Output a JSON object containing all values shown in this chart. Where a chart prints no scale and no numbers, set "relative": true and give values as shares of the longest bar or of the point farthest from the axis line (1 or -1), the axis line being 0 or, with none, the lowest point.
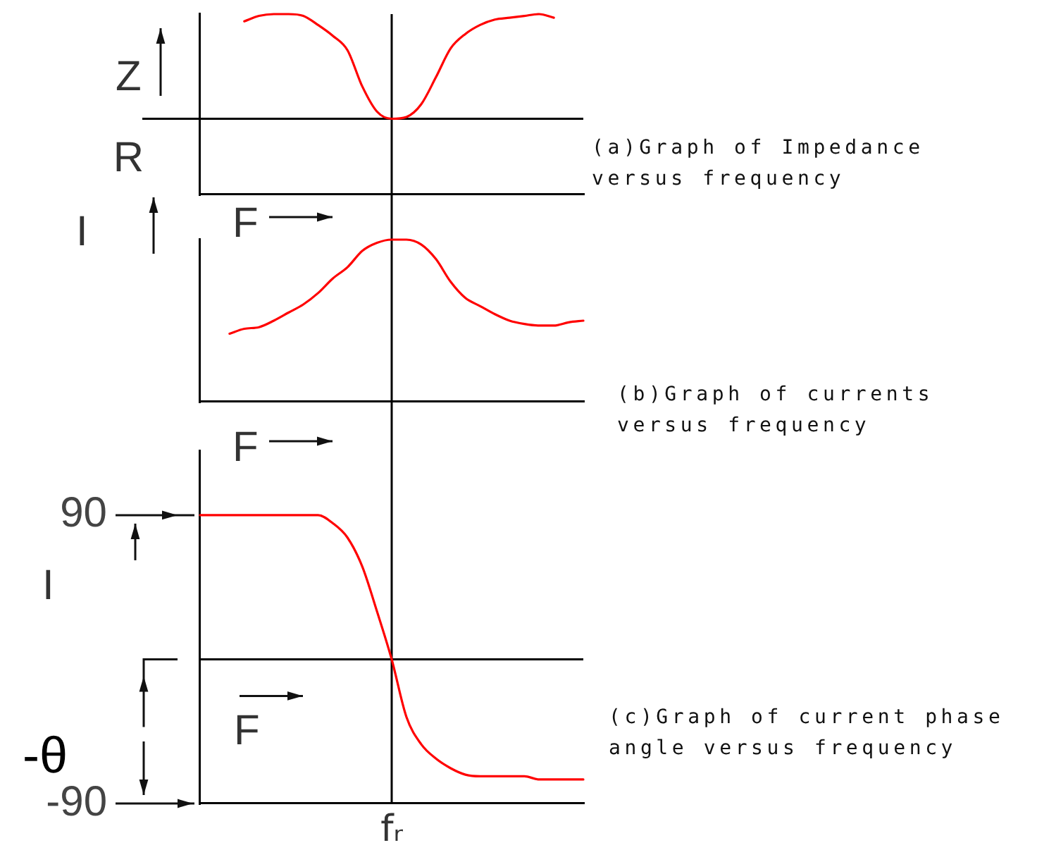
{
  "chart_data": [
    {
      "type": "line",
      "xlabel": "F",
      "ylabel": "Z",
      "relative": true,
      "categories": [
        null,
        null,
        null,
        null,
        null,
        null,
        null,
        null,
        null,
        null,
        null,
        null,
        null,
        null,
        null,
        null,
        null,
        null,
        null,
        null,
        null,
        null,
        null,
        null,
        null,
        null,
        null
      ],
      "series": [
        {
          "color": "#ff0000",
          "values": [
            null,
            null,
            null,
            0.96,
            0.99,
            1.0,
            1.0,
            0.99,
            0.94,
            0.88,
            0.8,
            0.6,
            0.46,
            0.42,
            0.43,
            0.5,
            0.65,
            0.81,
            0.89,
            0.94,
            0.97,
            0.98,
            0.99,
            1.0,
            0.98,
            null,
            null
          ]
        }
      ],
      "ref_lines": [
        {
          "axis": "y",
          "value": 0.42,
          "label": "R"
        }
      ],
      "annotations": [
        "(a)Graph of Impedance versus frequency"
      ]
    },
    {
      "type": "line",
      "xlabel": "F",
      "ylabel": "I",
      "relative": true,
      "categories": [
        null,
        null,
        null,
        null,
        null,
        null,
        null,
        null,
        null,
        null,
        null,
        null,
        null,
        null,
        null,
        null,
        null,
        null,
        null,
        null,
        null,
        null,
        null,
        null,
        null,
        null,
        null
      ],
      "series": [
        {
          "color": "#ff0000",
          "values": [
            null,
            null,
            0.42,
            0.45,
            0.46,
            0.5,
            0.55,
            0.6,
            0.67,
            0.76,
            0.83,
            0.93,
            0.98,
            1.0,
            1.0,
            0.97,
            0.88,
            0.74,
            0.64,
            0.59,
            0.54,
            0.5,
            0.48,
            0.47,
            0.47,
            0.49,
            0.5
          ]
        }
      ],
      "annotations": [
        "(b)Graph of currents versus frequency"
      ]
    },
    {
      "type": "line",
      "xlabel": "F",
      "ylim": [
        -90,
        130
      ],
      "yticks": [
        -90,
        90
      ],
      "categories": [
        null,
        null,
        null,
        null,
        null,
        null,
        null,
        null,
        null,
        null,
        null,
        null,
        null,
        "fᵣ",
        null,
        null,
        null,
        null,
        null,
        null,
        null,
        null,
        null,
        null,
        null,
        null,
        null
      ],
      "series": [
        {
          "color": "#ff0000",
          "values": [
            90,
            90,
            90,
            90,
            90,
            90,
            90,
            90,
            90,
            85,
            76,
            58,
            30,
            0,
            -36,
            -53,
            -62,
            -68,
            -72,
            -73,
            -73,
            -73,
            -73,
            -75,
            -75,
            -75,
            -75
          ]
        }
      ],
      "ref_lines": [
        {
          "axis": "x",
          "value": "fᵣ"
        },
        {
          "axis": "y",
          "value": 0
        }
      ],
      "annotations": [
        "(c)Graph of current phase angle versus frequency",
        "I",
        "-θ"
      ]
    }
  ]
}
